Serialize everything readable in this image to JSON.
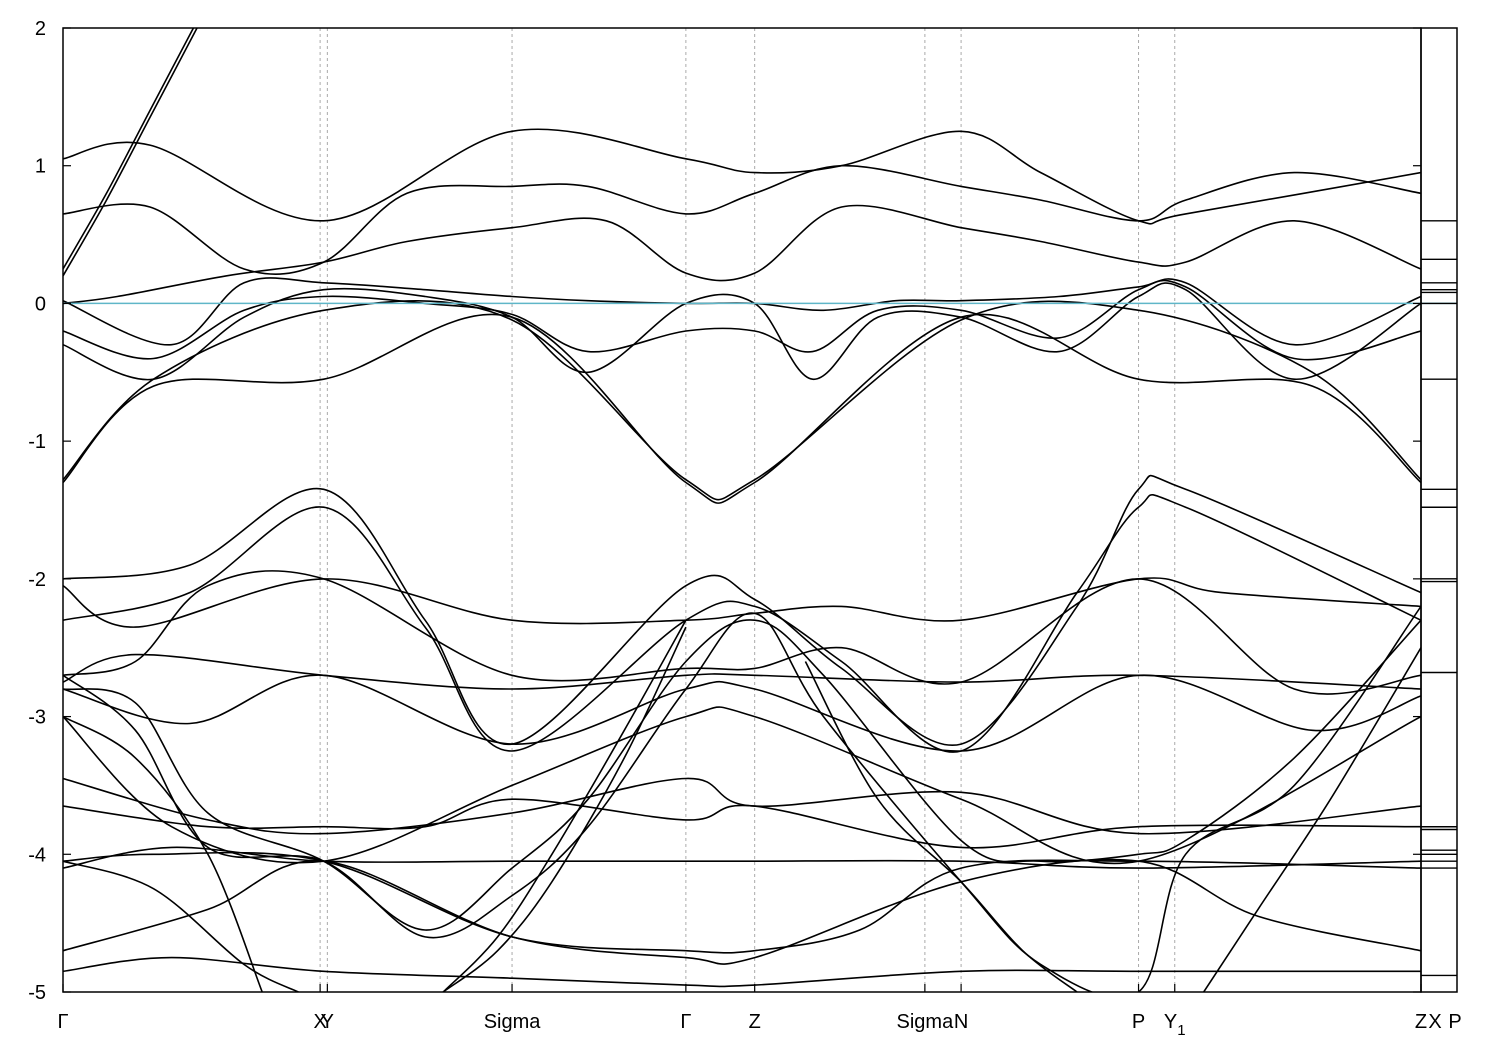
{
  "chart_data": [
    {
      "type": "line",
      "title": "",
      "xlabel": "",
      "ylabel": "",
      "ylim": [
        -5,
        2
      ],
      "yticks": [
        2,
        1,
        0,
        -1,
        -2,
        -3,
        -4,
        -5
      ],
      "ytick_labels": [
        "2",
        "1",
        "0",
        "-1",
        "-2",
        "-3",
        "-4",
        "-5"
      ],
      "xlim": [
        0,
        37.5
      ],
      "kpoints": [
        {
          "label": "Γ",
          "sub": "",
          "x": 0
        },
        {
          "label": "X",
          "sub": "",
          "x": 7.1
        },
        {
          "label": "Y",
          "sub": "",
          "x": 7.3
        },
        {
          "label": "Sigma",
          "sub": "",
          "x": 12.4
        },
        {
          "label": "Γ",
          "sub": "",
          "x": 17.2
        },
        {
          "label": "Z",
          "sub": "",
          "x": 19.1
        },
        {
          "label": "Sigma",
          "sub": "",
          "x": 23.8
        },
        {
          "label": "N",
          "sub": "",
          "x": 24.8
        },
        {
          "label": "P",
          "sub": "",
          "x": 29.7
        },
        {
          "label": "Y",
          "sub": "1",
          "x": 30.7
        },
        {
          "label": "Z",
          "sub": "",
          "x": 37.5
        }
      ],
      "fermi_level": 0,
      "fermi_color": "#5fb6c8",
      "band_color": "#000000",
      "series": [
        {
          "x": [
            0,
            1.2,
            2.4,
            3.6,
            4.8
          ],
          "y": [
            0.25,
            0.8,
            1.4,
            2.0,
            2.6
          ]
        },
        {
          "x": [
            0,
            1.2,
            2.4,
            3.6,
            4.8
          ],
          "y": [
            0.2,
            0.75,
            1.35,
            1.95,
            2.55
          ]
        },
        {
          "x": [
            0,
            2.4,
            7.2,
            12.4,
            17.2,
            19.1,
            21.5,
            24.8,
            27,
            29.7,
            31,
            37.5
          ],
          "y": [
            1.05,
            1.15,
            0.6,
            1.25,
            1.05,
            0.95,
            1.0,
            1.25,
            0.95,
            0.6,
            0.65,
            0.95
          ]
        },
        {
          "x": [
            0,
            2.4,
            5,
            7.2,
            9.5,
            12.4,
            14.5,
            17.2,
            19.1,
            21.5,
            24.8,
            27,
            29.7,
            31,
            34,
            37.5
          ],
          "y": [
            0.65,
            0.7,
            0.25,
            0.3,
            0.8,
            0.85,
            0.85,
            0.65,
            0.8,
            1.0,
            0.85,
            0.75,
            0.6,
            0.75,
            0.95,
            0.8
          ]
        },
        {
          "x": [
            0,
            1.5,
            4.5,
            7.2,
            9.5,
            12.4,
            15,
            17.2,
            19.1,
            21.5,
            24.8,
            27,
            29.7,
            31,
            34,
            37.5
          ],
          "y": [
            0.0,
            0.05,
            0.2,
            0.3,
            0.45,
            0.55,
            0.6,
            0.22,
            0.22,
            0.7,
            0.55,
            0.45,
            0.3,
            0.3,
            0.6,
            0.25
          ]
        },
        {
          "x": [
            0,
            2.5,
            5,
            7.2,
            10,
            12.4,
            14.5,
            17.2,
            19.1,
            20.7,
            22.5,
            24.8,
            27.5,
            29.7,
            31,
            34,
            37.5
          ],
          "y": [
            -0.3,
            -0.55,
            -0.1,
            0.1,
            0.05,
            -0.1,
            -0.5,
            0.0,
            0.0,
            -0.55,
            -0.1,
            -0.1,
            -0.35,
            0.05,
            0.1,
            -0.55,
            0.0
          ]
        },
        {
          "x": [
            0,
            2.5,
            5,
            7.2,
            10,
            12.4,
            14.5,
            17.2,
            19.1,
            20.7,
            22.5,
            24.8,
            27.5,
            29.7,
            31,
            34,
            37.5
          ],
          "y": [
            -0.2,
            -0.4,
            -0.05,
            0.05,
            0.0,
            -0.08,
            -0.35,
            -0.2,
            -0.2,
            -0.35,
            -0.05,
            -0.05,
            -0.25,
            0.1,
            0.12,
            -0.4,
            -0.2
          ]
        },
        {
          "x": [
            0,
            3.0,
            5,
            7.2,
            10,
            12.4,
            14.5,
            17.2,
            19.1,
            21.0,
            23,
            24.8,
            27.5,
            29.7,
            31,
            34,
            37.5
          ],
          "y": [
            0.02,
            -0.3,
            0.15,
            0.15,
            0.1,
            0.05,
            0.02,
            0.0,
            0.0,
            -0.05,
            0.02,
            0.02,
            0.05,
            0.12,
            0.15,
            -0.3,
            0.05
          ]
        },
        {
          "x": [
            0,
            2.5,
            7.2,
            12.4,
            17.2,
            19.1,
            24.8,
            29.7,
            34.5,
            37.5
          ],
          "y": [
            -1.3,
            -0.6,
            -0.55,
            -0.1,
            -1.3,
            -1.3,
            -0.1,
            -0.55,
            -0.6,
            -1.3
          ]
        },
        {
          "x": [
            0,
            2.5,
            7.2,
            12.4,
            17.2,
            19.1,
            24.8,
            29.7,
            34.5,
            37.5
          ],
          "y": [
            -1.28,
            -0.55,
            -0.05,
            -0.12,
            -1.28,
            -1.28,
            -0.12,
            -0.05,
            -0.5,
            -1.28
          ]
        },
        {
          "x": [
            0,
            3.5,
            7.2,
            10,
            12.4,
            17.2,
            19.1,
            21.5,
            24.8,
            28,
            29.7,
            31,
            37.5
          ],
          "y": [
            -2.0,
            -1.9,
            -1.35,
            -2.3,
            -3.2,
            -2.05,
            -2.15,
            -2.65,
            -3.2,
            -2.2,
            -1.35,
            -1.35,
            -2.1
          ]
        },
        {
          "x": [
            0,
            3.5,
            7.2,
            10,
            12.4,
            17.2,
            19.1,
            21.5,
            24.8,
            28,
            29.7,
            31,
            37.5
          ],
          "y": [
            -2.3,
            -2.1,
            -1.48,
            -2.35,
            -3.25,
            -2.3,
            -2.2,
            -2.6,
            -3.25,
            -2.1,
            -1.48,
            -1.48,
            -2.3
          ]
        },
        {
          "x": [
            0,
            2,
            7.2,
            12.4,
            17.2,
            19.1,
            21.5,
            24.8,
            29.7,
            32,
            37.5
          ],
          "y": [
            -2.05,
            -2.35,
            -2.0,
            -2.3,
            -2.3,
            -2.25,
            -2.2,
            -2.3,
            -2.0,
            -2.1,
            -2.2
          ]
        },
        {
          "x": [
            0,
            2,
            4,
            7.2,
            12.4,
            17.2,
            19.1,
            21.5,
            24.8,
            29.7,
            34,
            37.5
          ],
          "y": [
            -2.7,
            -2.6,
            -2.05,
            -2.0,
            -2.7,
            -2.65,
            -2.65,
            -2.5,
            -2.75,
            -2.0,
            -2.8,
            -2.7
          ]
        },
        {
          "x": [
            0,
            2,
            7.2,
            12.4,
            17.2,
            19.1,
            24.8,
            29.7,
            37.5
          ],
          "y": [
            -2.75,
            -2.55,
            -2.7,
            -2.8,
            -2.7,
            -2.7,
            -2.75,
            -2.7,
            -2.8
          ]
        },
        {
          "x": [
            0,
            3.5,
            7.2,
            12.4,
            17.2,
            19.1,
            24.8,
            29.7,
            34.5,
            37.5
          ],
          "y": [
            -2.8,
            -3.05,
            -2.7,
            -3.2,
            -2.8,
            -2.8,
            -3.25,
            -2.7,
            -3.1,
            -2.85
          ]
        },
        {
          "x": [
            0,
            3,
            7.2,
            12.4,
            17.2,
            19.1,
            24.8,
            29.7,
            37.5
          ],
          "y": [
            -3.0,
            -3.8,
            -4.05,
            -3.5,
            -3.0,
            -3.0,
            -3.6,
            -4.05,
            -3.0
          ]
        },
        {
          "x": [
            0,
            4,
            7.2,
            12.4,
            17.2,
            19.1,
            24.8,
            29.7,
            37.5
          ],
          "y": [
            -3.45,
            -3.75,
            -3.85,
            -3.7,
            -3.45,
            -3.65,
            -3.55,
            -3.85,
            -3.65
          ]
        },
        {
          "x": [
            0,
            4,
            7.2,
            10,
            12.4,
            17.2,
            19.1,
            24.8,
            29.7,
            37.5
          ],
          "y": [
            -3.65,
            -3.8,
            -3.8,
            -3.8,
            -3.6,
            -3.75,
            -3.65,
            -3.95,
            -3.8,
            -3.8
          ]
        },
        {
          "x": [
            0,
            3,
            7.2,
            12.4,
            17.2,
            19.1,
            24.8,
            29.7,
            37.5
          ],
          "y": [
            -4.1,
            -3.95,
            -4.05,
            -4.05,
            -4.05,
            -4.05,
            -4.05,
            -4.1,
            -4.05
          ]
        },
        {
          "x": [
            0,
            2.5,
            7.2,
            12.4,
            17.2,
            19.1,
            22,
            24.8,
            29.7,
            37.5
          ],
          "y": [
            -4.05,
            -4.0,
            -4.05,
            -4.6,
            -4.7,
            -4.7,
            -4.55,
            -4.1,
            -4.05,
            -4.1
          ]
        },
        {
          "x": [
            0,
            4,
            7.2,
            12.4,
            17.2,
            19.1,
            24.8,
            29.7,
            33,
            37.5
          ],
          "y": [
            -4.7,
            -4.4,
            -4.05,
            -4.6,
            -4.75,
            -4.75,
            -4.2,
            -4.05,
            -4.45,
            -4.7
          ]
        },
        {
          "x": [
            0,
            3,
            7.2,
            12.4,
            17.2,
            19.1,
            24.8,
            29.7,
            37.5
          ],
          "y": [
            -4.85,
            -4.75,
            -4.85,
            -4.9,
            -4.95,
            -4.95,
            -4.85,
            -4.85,
            -4.85
          ]
        },
        {
          "x": [
            0,
            2,
            4,
            7.2,
            10,
            12.4,
            14.5,
            17.2,
            19.1,
            21,
            24.8,
            27,
            29.7,
            31,
            34,
            37.5
          ],
          "y": [
            -2.8,
            -2.9,
            -3.7,
            -4.05,
            -4.55,
            -4.1,
            -3.6,
            -2.6,
            -2.3,
            -2.7,
            -3.9,
            -4.05,
            -4.0,
            -3.9,
            -3.3,
            -2.3
          ]
        },
        {
          "x": [
            0,
            2,
            4,
            7.2,
            10,
            12.4,
            14.5,
            17.2,
            19.1,
            21,
            24.8,
            27,
            29.7,
            31,
            34,
            37.5
          ],
          "y": [
            -2.7,
            -3.1,
            -3.95,
            -4.05,
            -4.6,
            -4.3,
            -3.8,
            -2.8,
            -2.25,
            -3.0,
            -4.2,
            -4.8,
            -5.0,
            -4.0,
            -3.5,
            -2.2
          ]
        },
        {
          "x": [
            0,
            2.5,
            5,
            6.5
          ],
          "y": [
            -4.05,
            -4.25,
            -4.8,
            -5.0
          ]
        },
        {
          "x": [
            0,
            2,
            4,
            5.5
          ],
          "y": [
            -3.0,
            -3.3,
            -4.0,
            -5.0
          ]
        },
        {
          "x": [
            10.5,
            12,
            13.5,
            15.5,
            17.2
          ],
          "y": [
            -5.0,
            -4.6,
            -4.0,
            -3.1,
            -2.3
          ]
        },
        {
          "x": [
            10.5,
            12,
            13.5,
            15.5,
            17.2
          ],
          "y": [
            -5.0,
            -4.7,
            -4.2,
            -3.3,
            -2.35
          ]
        },
        {
          "x": [
            20.5,
            22.5,
            24.8,
            26.5,
            28
          ],
          "y": [
            -2.6,
            -3.6,
            -4.2,
            -4.7,
            -5.0
          ]
        },
        {
          "x": [
            31.5,
            33,
            35,
            37.5
          ],
          "y": [
            -5.0,
            -4.4,
            -3.6,
            -2.5
          ]
        }
      ]
    },
    {
      "type": "line",
      "title": "",
      "xlabel": "",
      "ylabel": "",
      "ylim": [
        -5,
        2
      ],
      "kpoints": [
        {
          "label": "X",
          "sub": "",
          "x": 0
        },
        {
          "label": "P",
          "sub": "",
          "x": 1
        }
      ],
      "levels": [
        0.6,
        0.32,
        0.15,
        0.1,
        0.08,
        0.0,
        -0.55,
        -1.35,
        -1.48,
        -2.0,
        -2.02,
        -2.68,
        -3.8,
        -3.82,
        -3.97,
        -4.0,
        -4.05,
        -4.1,
        -4.88
      ]
    }
  ]
}
